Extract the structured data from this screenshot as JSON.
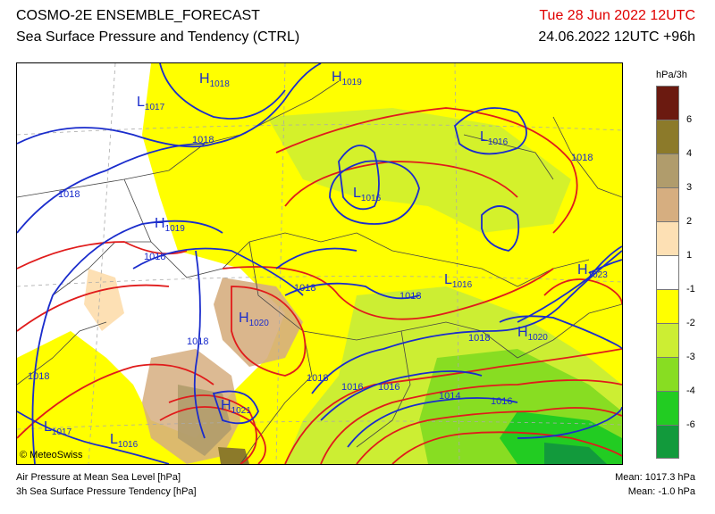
{
  "header": {
    "title_line1": "COSMO-2E ENSEMBLE_FORECAST",
    "title_line2": "Sea Surface Pressure and Tendency (CTRL)",
    "valid_time": "Tue 28 Jun 2022 12UTC",
    "run_time": "24.06.2022 12UTC +96h"
  },
  "legend": {
    "unit": "hPa/3h",
    "items": [
      {
        "label": "6",
        "color": "#6b1a10"
      },
      {
        "label": "4",
        "color": "#8c7a2a"
      },
      {
        "label": "3",
        "color": "#b09c6c"
      },
      {
        "label": "2",
        "color": "#d6ae80"
      },
      {
        "label": "1",
        "color": "#fde0b4"
      },
      {
        "label": "-1",
        "color": "#ffffff"
      },
      {
        "label": "-2",
        "color": "#ffff00"
      },
      {
        "label": "-3",
        "color": "#ccee33"
      },
      {
        "label": "-4",
        "color": "#88dd22"
      },
      {
        "label": "-6",
        "color": "#22cc22"
      },
      {
        "label": "",
        "color": "#129a3c"
      }
    ]
  },
  "map": {
    "credit": "© MeteoSwiss",
    "isobar_color": "#1a2ccc",
    "tendency_line_color": "#e01b1b",
    "pressure_labels": [
      "1018",
      "1018",
      "1018",
      "1018",
      "1018",
      "1018",
      "1018",
      "1018",
      "1018",
      "1016",
      "1016",
      "1014",
      "1016",
      "1018"
    ],
    "centers": [
      {
        "type": "H",
        "value": "1018"
      },
      {
        "type": "H",
        "value": "1019"
      },
      {
        "type": "L",
        "value": "1017"
      },
      {
        "type": "L",
        "value": "1016"
      },
      {
        "type": "L",
        "value": "1016"
      },
      {
        "type": "H",
        "value": "1019"
      },
      {
        "type": "L",
        "value": "1016"
      },
      {
        "type": "H",
        "value": "1023"
      },
      {
        "type": "H",
        "value": "1020"
      },
      {
        "type": "H",
        "value": "1020"
      },
      {
        "type": "H",
        "value": "1021"
      },
      {
        "type": "L",
        "value": "1017"
      },
      {
        "type": "L",
        "value": "1016"
      }
    ]
  },
  "footer": {
    "left_line1": "Air Pressure at Mean Sea Level [hPa]",
    "left_line2": "3h Sea Surface Pressure Tendency [hPa]",
    "mean_pressure": "Mean: 1017.3 hPa",
    "mean_tendency": "Mean:   -1.0 hPa"
  }
}
